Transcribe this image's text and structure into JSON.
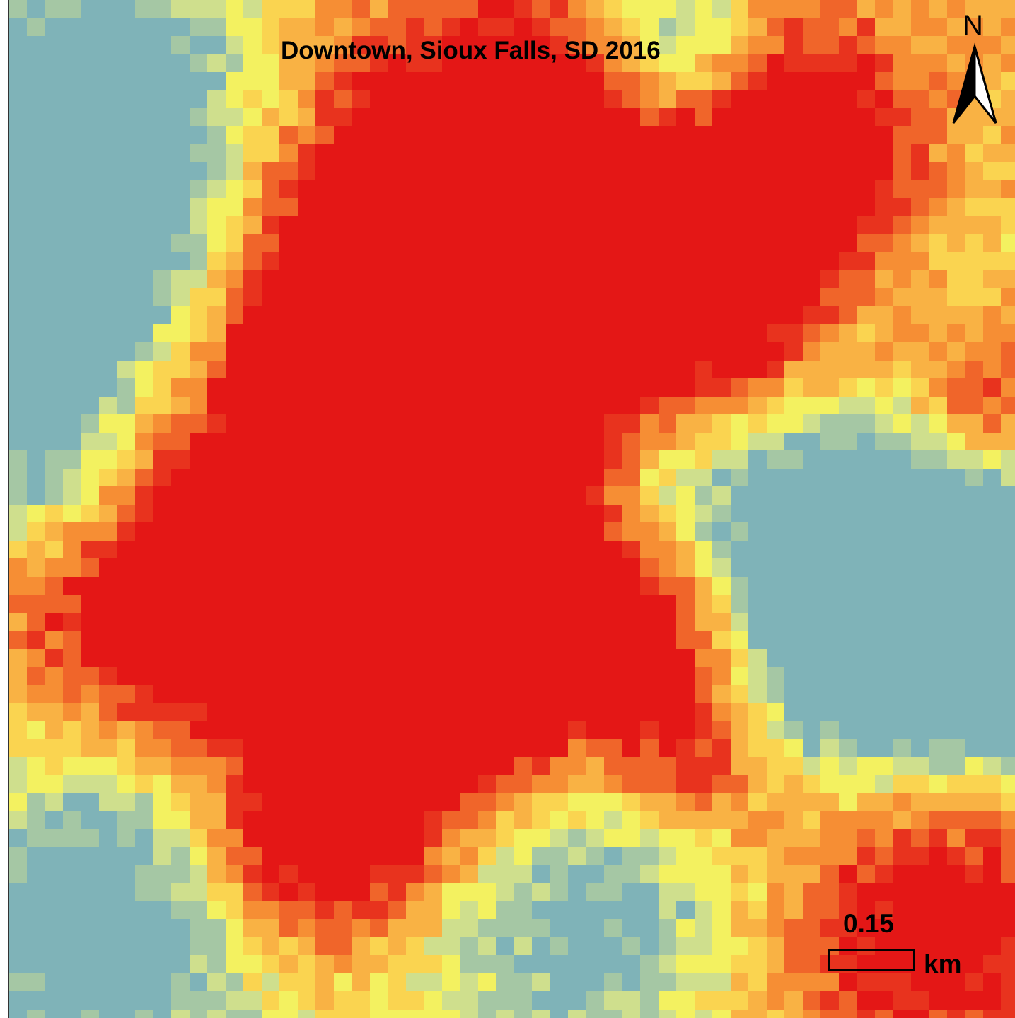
{
  "map": {
    "title": "Downtown, Sioux Falls, SD 2016",
    "north_label": "N",
    "scale_value": "0.15",
    "scale_unit": "km",
    "palette": [
      "#7fb3b8",
      "#a5c7a4",
      "#cfdf8d",
      "#f3f160",
      "#fad450",
      "#f9b244",
      "#f68e34",
      "#f0652a",
      "#e8331e",
      "#e41716"
    ]
  }
}
